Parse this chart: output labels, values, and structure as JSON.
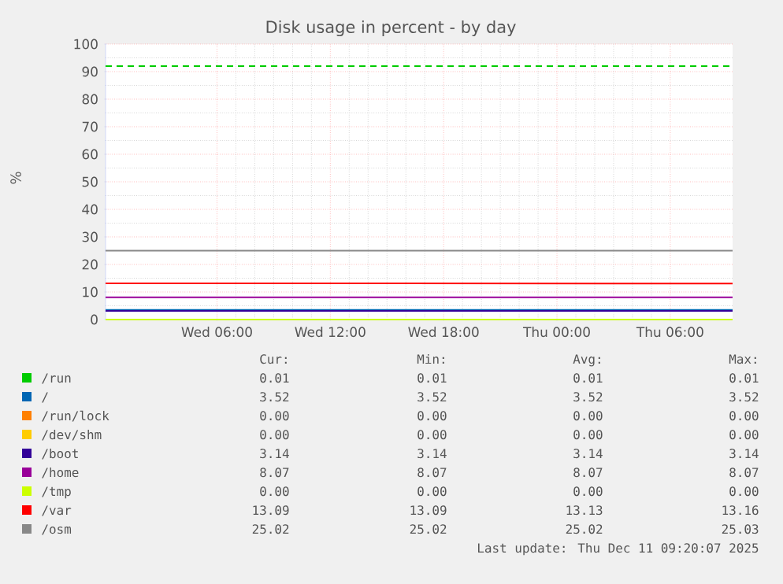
{
  "chart_data": {
    "type": "line",
    "title": "Disk usage in percent - by day",
    "ylabel": "%",
    "xlim": [
      "2025-12-10T00:06",
      "2025-12-11T09:18"
    ],
    "ylim": [
      0,
      100
    ],
    "xticks": [
      {
        "value": "2025-12-10T06:00",
        "label": "Wed 06:00"
      },
      {
        "value": "2025-12-10T12:00",
        "label": "Wed 12:00"
      },
      {
        "value": "2025-12-10T18:00",
        "label": "Wed 18:00"
      },
      {
        "value": "2025-12-11T00:00",
        "label": "Thu 00:00"
      },
      {
        "value": "2025-12-11T06:00",
        "label": "Thu 06:00"
      }
    ],
    "yticks": [
      0,
      10,
      20,
      30,
      40,
      50,
      60,
      70,
      80,
      90,
      100
    ],
    "grid": true,
    "legend": "bottom",
    "marker": "none",
    "line_style": "solid",
    "x": [
      "2025-12-10T00:06",
      "2025-12-11T09:18"
    ],
    "series": [
      {
        "name": "/run",
        "color": "#00cc00",
        "values": [
          null,
          null
        ]
      },
      {
        "name": "/",
        "color": "#0066b3",
        "values": [
          3.52,
          3.52
        ]
      },
      {
        "name": "/run/lock",
        "color": "#ff8000",
        "values": [
          null,
          null
        ]
      },
      {
        "name": "/dev/shm",
        "color": "#ffcc00",
        "values": [
          null,
          null
        ]
      },
      {
        "name": "/boot",
        "color": "#330099",
        "values": [
          3.14,
          3.14
        ]
      },
      {
        "name": "/home",
        "color": "#990099",
        "values": [
          8.07,
          8.07
        ]
      },
      {
        "name": "/tmp",
        "color": "#ccff00",
        "values": [
          0,
          0
        ]
      },
      {
        "name": "/var",
        "color": "#ff0000",
        "values": [
          13.13,
          13.09
        ]
      },
      {
        "name": "/osm",
        "color": "#888888",
        "values": [
          25.02,
          25.02
        ]
      }
    ],
    "ref_lines": [
      {
        "axis": "y",
        "value": 92,
        "color": "#00cc00",
        "line_style": "dashed"
      }
    ],
    "annotations": [
      "Cur:",
      "Min:",
      "Avg:",
      "Max:",
      "0.01",
      "0.01",
      "0.01",
      "0.01",
      "3.52",
      "3.52",
      "3.52",
      "3.52",
      "0.00",
      "0.00",
      "0.00",
      "0.00",
      "0.00",
      "0.00",
      "0.00",
      "0.00",
      "3.14",
      "3.14",
      "3.14",
      "3.14",
      "8.07",
      "8.07",
      "8.07",
      "8.07",
      "0.00",
      "0.00",
      "0.00",
      "0.00",
      "13.09",
      "13.09",
      "13.13",
      "13.16",
      "25.02",
      "25.02",
      "25.02",
      "25.03",
      "Last update: Thu Dec 11 09:20:07 2025"
    ]
  }
}
